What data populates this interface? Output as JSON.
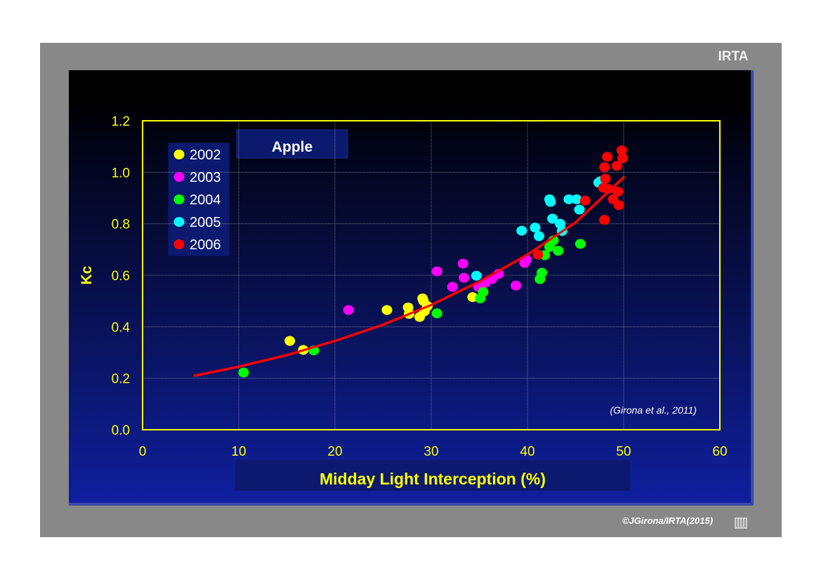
{
  "logo": "IRTA",
  "credit": "©JGirona/IRTA(2015)",
  "colors": {
    "axis": "#ffff00",
    "fit_line": "#ff0000",
    "title_box": "#0b1a6e",
    "text": "#ffffff"
  },
  "chart_data": {
    "type": "scatter",
    "title": "Apple",
    "xlabel": "Midday Light Interception  (%)",
    "ylabel": "Kc",
    "xlim": [
      0,
      60
    ],
    "ylim": [
      0,
      1.2
    ],
    "x_ticks": [
      "0",
      "10",
      "20",
      "30",
      "40",
      "50",
      "60"
    ],
    "y_ticks": [
      "0.0",
      "0.2",
      "0.4",
      "0.6",
      "0.8",
      "1.0",
      "1.2"
    ],
    "grid": true,
    "legend_position": "top-left",
    "annotation": "(Girona et al., 2011)",
    "series": [
      {
        "name": "2002",
        "color": "#ffff00",
        "points": [
          [
            15.3,
            0.345
          ],
          [
            16.7,
            0.31
          ],
          [
            25.4,
            0.465
          ],
          [
            27.6,
            0.475
          ],
          [
            27.7,
            0.45
          ],
          [
            28.8,
            0.438
          ],
          [
            29.1,
            0.51
          ],
          [
            29.2,
            0.5
          ],
          [
            29.3,
            0.46
          ],
          [
            29.6,
            0.48
          ],
          [
            34.3,
            0.515
          ]
        ]
      },
      {
        "name": "2003",
        "color": "#ff00ff",
        "points": [
          [
            21.4,
            0.465
          ],
          [
            30.6,
            0.615
          ],
          [
            32.2,
            0.555
          ],
          [
            33.3,
            0.645
          ],
          [
            33.4,
            0.59
          ],
          [
            34.9,
            0.555
          ],
          [
            35.6,
            0.57
          ],
          [
            36.3,
            0.585
          ],
          [
            37.0,
            0.605
          ],
          [
            38.8,
            0.56
          ],
          [
            39.7,
            0.648
          ],
          [
            39.9,
            0.66
          ]
        ]
      },
      {
        "name": "2004",
        "color": "#00ff00",
        "points": [
          [
            10.5,
            0.222
          ],
          [
            17.8,
            0.308
          ],
          [
            30.6,
            0.452
          ],
          [
            35.1,
            0.51
          ],
          [
            35.4,
            0.535
          ],
          [
            41.3,
            0.585
          ],
          [
            41.5,
            0.61
          ],
          [
            41.8,
            0.678
          ],
          [
            42.3,
            0.71
          ],
          [
            42.7,
            0.735
          ],
          [
            43.2,
            0.695
          ],
          [
            45.5,
            0.722
          ]
        ]
      },
      {
        "name": "2005",
        "color": "#00ffff",
        "points": [
          [
            34.7,
            0.598
          ],
          [
            39.4,
            0.773
          ],
          [
            40.8,
            0.785
          ],
          [
            41.2,
            0.752
          ],
          [
            42.3,
            0.895
          ],
          [
            42.4,
            0.885
          ],
          [
            42.6,
            0.82
          ],
          [
            43.4,
            0.8
          ],
          [
            43.6,
            0.772
          ],
          [
            44.3,
            0.895
          ],
          [
            45.1,
            0.895
          ],
          [
            45.4,
            0.855
          ],
          [
            47.4,
            0.96
          ],
          [
            47.6,
            0.965
          ]
        ]
      },
      {
        "name": "2006",
        "color": "#ff0000",
        "points": [
          [
            41.1,
            0.68
          ],
          [
            46.0,
            0.89
          ],
          [
            47.9,
            0.94
          ],
          [
            48.0,
            1.02
          ],
          [
            48.0,
            0.815
          ],
          [
            48.1,
            0.975
          ],
          [
            48.3,
            1.06
          ],
          [
            48.4,
            0.935
          ],
          [
            48.9,
            0.895
          ],
          [
            49.3,
            1.025
          ],
          [
            49.4,
            0.925
          ],
          [
            49.5,
            0.872
          ],
          [
            49.8,
            1.085
          ],
          [
            49.9,
            1.055
          ]
        ]
      }
    ],
    "fit_curve": {
      "name": "",
      "color": "#ff0000",
      "points": [
        [
          5.4,
          0.21
        ],
        [
          10,
          0.245
        ],
        [
          15,
          0.29
        ],
        [
          20,
          0.345
        ],
        [
          25,
          0.408
        ],
        [
          30,
          0.485
        ],
        [
          35,
          0.575
        ],
        [
          40,
          0.68
        ],
        [
          45,
          0.805
        ],
        [
          50,
          0.98
        ]
      ]
    }
  }
}
